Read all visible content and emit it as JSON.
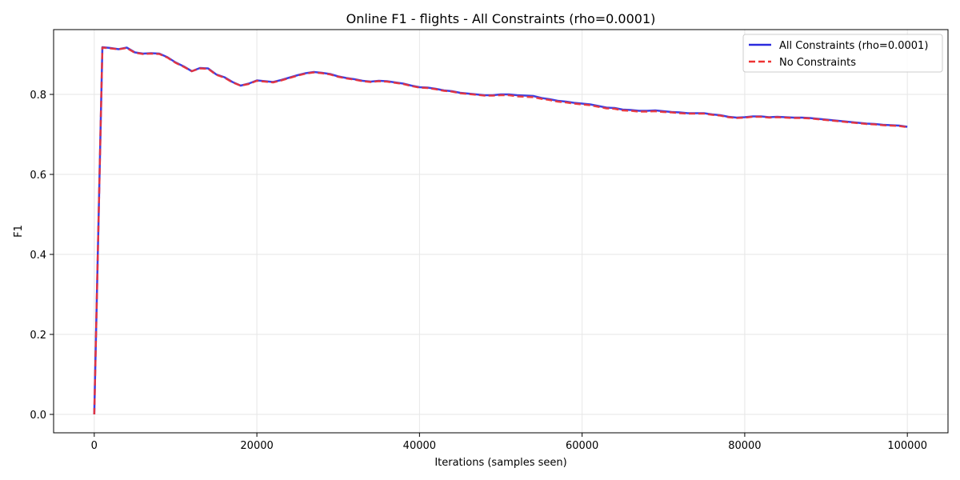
{
  "chart_data": {
    "type": "line",
    "title": "Online F1 - flights - All Constraints (rho=0.0001)",
    "xlabel": "Iterations (samples seen)",
    "ylabel": "F1",
    "xlim": [
      -5000,
      105000
    ],
    "ylim": [
      -0.046,
      0.962
    ],
    "xticks": [
      0,
      20000,
      40000,
      60000,
      80000,
      100000
    ],
    "yticks": [
      0.0,
      0.2,
      0.4,
      0.6,
      0.8
    ],
    "grid": true,
    "legend_position": "top-right",
    "x": [
      0,
      1000,
      2000,
      3000,
      4000,
      5000,
      6000,
      7000,
      8000,
      9000,
      10000,
      11000,
      12000,
      13000,
      14000,
      15000,
      16000,
      17000,
      18000,
      19000,
      20000,
      21000,
      22000,
      23000,
      24000,
      25000,
      26000,
      27000,
      28000,
      29000,
      30000,
      31000,
      32000,
      33000,
      34000,
      35000,
      36000,
      37000,
      38000,
      39000,
      40000,
      41000,
      42000,
      43000,
      44000,
      45000,
      46000,
      47000,
      48000,
      49000,
      50000,
      51000,
      52000,
      53000,
      54000,
      55000,
      56000,
      57000,
      58000,
      59000,
      60000,
      61000,
      62000,
      63000,
      64000,
      65000,
      66000,
      67000,
      68000,
      69000,
      70000,
      71000,
      72000,
      73000,
      74000,
      75000,
      76000,
      77000,
      78000,
      79000,
      80000,
      81000,
      82000,
      83000,
      84000,
      85000,
      86000,
      87000,
      88000,
      89000,
      90000,
      91000,
      92000,
      93000,
      94000,
      95000,
      96000,
      97000,
      98000,
      99000,
      100000
    ],
    "series": [
      {
        "name": "All Constraints (rho=0.0001)",
        "color": "#2b2bde",
        "style": "solid",
        "values": [
          0.0,
          0.918,
          0.916,
          0.913,
          0.917,
          0.905,
          0.902,
          0.903,
          0.902,
          0.893,
          0.88,
          0.87,
          0.858,
          0.866,
          0.865,
          0.85,
          0.843,
          0.831,
          0.822,
          0.827,
          0.835,
          0.833,
          0.831,
          0.836,
          0.842,
          0.848,
          0.853,
          0.856,
          0.854,
          0.851,
          0.845,
          0.841,
          0.838,
          0.834,
          0.832,
          0.834,
          0.833,
          0.83,
          0.827,
          0.822,
          0.818,
          0.817,
          0.814,
          0.81,
          0.808,
          0.804,
          0.802,
          0.8,
          0.798,
          0.798,
          0.8,
          0.8,
          0.798,
          0.797,
          0.796,
          0.791,
          0.788,
          0.784,
          0.782,
          0.779,
          0.777,
          0.775,
          0.771,
          0.767,
          0.766,
          0.762,
          0.761,
          0.759,
          0.759,
          0.76,
          0.758,
          0.756,
          0.755,
          0.753,
          0.753,
          0.753,
          0.75,
          0.748,
          0.744,
          0.742,
          0.743,
          0.745,
          0.745,
          0.743,
          0.744,
          0.743,
          0.742,
          0.742,
          0.741,
          0.739,
          0.737,
          0.735,
          0.733,
          0.731,
          0.729,
          0.727,
          0.726,
          0.724,
          0.723,
          0.722,
          0.719
        ]
      },
      {
        "name": "No Constraints",
        "color": "#ee3333",
        "style": "dashed",
        "values": [
          0.0,
          0.917,
          0.915,
          0.913,
          0.916,
          0.904,
          0.901,
          0.902,
          0.901,
          0.892,
          0.879,
          0.869,
          0.858,
          0.865,
          0.864,
          0.849,
          0.842,
          0.83,
          0.822,
          0.826,
          0.834,
          0.832,
          0.83,
          0.835,
          0.841,
          0.847,
          0.852,
          0.855,
          0.853,
          0.85,
          0.844,
          0.84,
          0.837,
          0.833,
          0.831,
          0.833,
          0.832,
          0.829,
          0.826,
          0.821,
          0.817,
          0.816,
          0.813,
          0.809,
          0.807,
          0.803,
          0.801,
          0.799,
          0.797,
          0.797,
          0.798,
          0.798,
          0.795,
          0.794,
          0.793,
          0.789,
          0.786,
          0.782,
          0.78,
          0.777,
          0.775,
          0.773,
          0.769,
          0.765,
          0.764,
          0.76,
          0.759,
          0.757,
          0.757,
          0.758,
          0.756,
          0.755,
          0.753,
          0.752,
          0.752,
          0.752,
          0.749,
          0.747,
          0.743,
          0.741,
          0.742,
          0.744,
          0.744,
          0.742,
          0.743,
          0.742,
          0.741,
          0.741,
          0.74,
          0.738,
          0.736,
          0.734,
          0.732,
          0.73,
          0.728,
          0.726,
          0.725,
          0.723,
          0.722,
          0.721,
          0.718
        ]
      }
    ]
  }
}
